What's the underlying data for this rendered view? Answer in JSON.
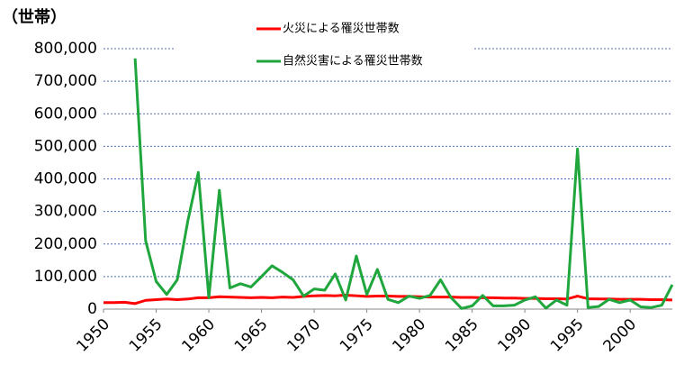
{
  "chart_data": {
    "type": "line",
    "y_unit_label": "（世帯）",
    "x": [
      1950,
      1951,
      1952,
      1953,
      1954,
      1955,
      1956,
      1957,
      1958,
      1959,
      1960,
      1961,
      1962,
      1963,
      1964,
      1965,
      1966,
      1967,
      1968,
      1969,
      1970,
      1971,
      1972,
      1973,
      1974,
      1975,
      1976,
      1977,
      1978,
      1979,
      1980,
      1981,
      1982,
      1983,
      1984,
      1985,
      1986,
      1987,
      1988,
      1989,
      1990,
      1991,
      1992,
      1993,
      1994,
      1995,
      1996,
      1997,
      1998,
      1999,
      2000,
      2001,
      2002,
      2003,
      2004
    ],
    "series": [
      {
        "name": "火災による罹災世帯数",
        "color": "#ff0000",
        "values": [
          20000,
          20000,
          21000,
          17000,
          27000,
          29000,
          31000,
          29000,
          31000,
          35000,
          35000,
          38000,
          37000,
          36000,
          35000,
          36000,
          35000,
          37000,
          36000,
          39000,
          41000,
          42000,
          41000,
          43000,
          41000,
          39000,
          40000,
          40000,
          39000,
          39000,
          38000,
          37000,
          37000,
          37000,
          36000,
          36000,
          35000,
          35000,
          34000,
          34000,
          33000,
          33000,
          32000,
          32000,
          31000,
          40000,
          32000,
          31000,
          31000,
          30000,
          30000,
          30000,
          29000,
          29000,
          28000
        ]
      },
      {
        "name": "自然災害による罹災世帯数",
        "color": "#1fa63c",
        "values": [
          null,
          null,
          null,
          770000,
          210000,
          85000,
          45000,
          90000,
          270000,
          420000,
          35000,
          365000,
          65000,
          78000,
          68000,
          100000,
          133000,
          113000,
          90000,
          40000,
          62000,
          58000,
          108000,
          28000,
          163000,
          45000,
          122000,
          30000,
          20000,
          40000,
          33000,
          42000,
          90000,
          35000,
          2000,
          10000,
          42000,
          10000,
          10000,
          12000,
          28000,
          38000,
          3000,
          28000,
          12000,
          492000,
          5000,
          8000,
          30000,
          20000,
          28000,
          7000,
          5000,
          12000,
          75000
        ]
      }
    ],
    "xlim": [
      1950,
      2004
    ],
    "xticks": [
      1950,
      1955,
      1960,
      1965,
      1970,
      1975,
      1980,
      1985,
      1990,
      1995,
      2000
    ],
    "ylim": [
      0,
      800000
    ],
    "yticks": [
      {
        "value": 0,
        "label": "0"
      },
      {
        "value": 100000,
        "label": "100,000"
      },
      {
        "value": 200000,
        "label": "200,000"
      },
      {
        "value": 300000,
        "label": "300,000"
      },
      {
        "value": 400000,
        "label": "400,000"
      },
      {
        "value": 500000,
        "label": "500,000"
      },
      {
        "value": 600000,
        "label": "600,000"
      },
      {
        "value": 700000,
        "label": "700,000"
      },
      {
        "value": 800000,
        "label": "800,000"
      }
    ],
    "grid": true
  }
}
